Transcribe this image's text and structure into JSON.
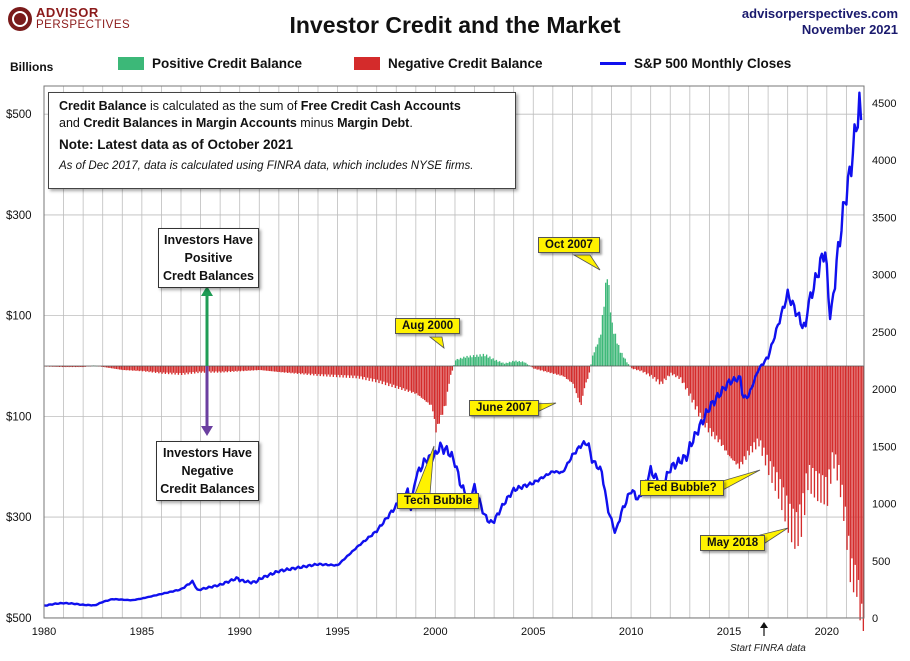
{
  "header": {
    "logo_line1": "ADVISOR",
    "logo_line2": "PERSPECTIVES",
    "title": "Investor Credit and the Market",
    "source_line1": "advisorperspectives.com",
    "source_line2": "November 2021"
  },
  "axis": {
    "left_unit": "Billions",
    "left_ticks": [
      "$500",
      "$300",
      "$100",
      "$100",
      "$300",
      "$500"
    ],
    "left_values": [
      500,
      300,
      100,
      -100,
      -300,
      -500
    ],
    "right_ticks": [
      "4500",
      "4000",
      "3500",
      "3000",
      "2500",
      "2000",
      "1500",
      "1000",
      "500",
      "0"
    ],
    "right_values": [
      4500,
      4000,
      3500,
      3000,
      2500,
      2000,
      1500,
      1000,
      500,
      0
    ],
    "x_ticks": [
      "1980",
      "1985",
      "1990",
      "1995",
      "2000",
      "2005",
      "2010",
      "2015",
      "2020"
    ],
    "x_values": [
      1980,
      1985,
      1990,
      1995,
      2000,
      2005,
      2010,
      2015,
      2020
    ]
  },
  "legend": {
    "positive": "Positive Credit Balance",
    "negative": "Negative Credit Balance",
    "sp500": "S&P 500 Monthly Closes"
  },
  "colors": {
    "positive": "#3cb878",
    "negative": "#d42b2b",
    "sp500": "#1010ee",
    "annotation": "#fff200",
    "green_arrow": "#1f9d55",
    "purple_arrow": "#6b3fa0"
  },
  "note": {
    "line1_a": "Credit Balance",
    "line1_b": " is calculated as the sum of ",
    "line1_c": "Free Credit Cash Accounts",
    "line2_a": "and ",
    "line2_b": "Credit Balances in Margin Accounts",
    "line2_c": " minus ",
    "line2_d": "Margin Debt",
    "line2_e": ".",
    "latest": "Note: Latest data as of October 2021",
    "finra": "As of Dec 2017, data is calculated using FINRA data, which includes NYSE firms."
  },
  "boxes": {
    "positive_l1": "Investors Have",
    "positive_l2": "Positive",
    "positive_l3": "Credt Balances",
    "negative_l1": "Investors Have",
    "negative_l2": "Negative",
    "negative_l3": "Credit Balances"
  },
  "annotations": {
    "oct2007": "Oct 2007",
    "aug2000": "Aug 2000",
    "june2007": "June 2007",
    "tech_bubble": "Tech Bubble",
    "fed_bubble": "Fed Bubble?",
    "may2018": "May  2018",
    "start_finra": "Start FINRA data"
  },
  "chart_data": {
    "type": "bar+line",
    "title": "Investor Credit and the Market",
    "ylabel": "Billions",
    "xlim": [
      1980,
      2021.9
    ],
    "ylim_left": [
      -500,
      500
    ],
    "ylim_right": [
      0,
      4700
    ],
    "grid": true,
    "series": [
      {
        "name": "Credit Balance (Positive Credit Balance / Negative Credit Balance)",
        "kind": "bar",
        "axis": "left",
        "points": [
          [
            1980,
            -1
          ],
          [
            1981,
            -2
          ],
          [
            1982,
            -2
          ],
          [
            1982.5,
            1
          ],
          [
            1983,
            -2
          ],
          [
            1984,
            -8
          ],
          [
            1985,
            -10
          ],
          [
            1986,
            -14
          ],
          [
            1987,
            -16
          ],
          [
            1988,
            -12
          ],
          [
            1989,
            -12
          ],
          [
            1990,
            -10
          ],
          [
            1991,
            -8
          ],
          [
            1992,
            -12
          ],
          [
            1993,
            -15
          ],
          [
            1994,
            -18
          ],
          [
            1995,
            -20
          ],
          [
            1996,
            -22
          ],
          [
            1997,
            -30
          ],
          [
            1998,
            -42
          ],
          [
            1999,
            -55
          ],
          [
            1999.8,
            -80
          ],
          [
            2000,
            -128
          ],
          [
            2000.5,
            -75
          ],
          [
            2000.7,
            -25
          ],
          [
            2001,
            12
          ],
          [
            2001.5,
            18
          ],
          [
            2002,
            20
          ],
          [
            2002.5,
            22
          ],
          [
            2003,
            12
          ],
          [
            2003.5,
            5
          ],
          [
            2004,
            10
          ],
          [
            2004.5,
            8
          ],
          [
            2005,
            -5
          ],
          [
            2005.5,
            -10
          ],
          [
            2006,
            -15
          ],
          [
            2006.5,
            -20
          ],
          [
            2007,
            -35
          ],
          [
            2007.4,
            -80
          ],
          [
            2007.6,
            -40
          ],
          [
            2007.8,
            -20
          ],
          [
            2008,
            20
          ],
          [
            2008.4,
            60
          ],
          [
            2008.75,
            185
          ],
          [
            2009,
            80
          ],
          [
            2009.4,
            30
          ],
          [
            2009.8,
            5
          ],
          [
            2010,
            -5
          ],
          [
            2010.5,
            -10
          ],
          [
            2011,
            -20
          ],
          [
            2011.5,
            -35
          ],
          [
            2012,
            -15
          ],
          [
            2012.5,
            -25
          ],
          [
            2013,
            -60
          ],
          [
            2013.5,
            -100
          ],
          [
            2014,
            -130
          ],
          [
            2014.5,
            -150
          ],
          [
            2015,
            -180
          ],
          [
            2015.5,
            -200
          ],
          [
            2016,
            -170
          ],
          [
            2016.5,
            -150
          ],
          [
            2017,
            -200
          ],
          [
            2017.5,
            -240
          ],
          [
            2018.1,
            -310
          ],
          [
            2018.4,
            -330
          ],
          [
            2018.7,
            -300
          ],
          [
            2019,
            -220
          ],
          [
            2019.5,
            -240
          ],
          [
            2020,
            -250
          ],
          [
            2020.3,
            -180
          ],
          [
            2020.6,
            -220
          ],
          [
            2020.9,
            -300
          ],
          [
            2021.2,
            -410
          ],
          [
            2021.5,
            -430
          ],
          [
            2021.75,
            -500
          ]
        ]
      },
      {
        "name": "S&P 500 Monthly Closes",
        "kind": "line",
        "axis": "right",
        "points": [
          [
            1980,
            107
          ],
          [
            1980.6,
            125
          ],
          [
            1981,
            130
          ],
          [
            1981.5,
            125
          ],
          [
            1982,
            115
          ],
          [
            1982.6,
            110
          ],
          [
            1983,
            140
          ],
          [
            1983.5,
            165
          ],
          [
            1984,
            160
          ],
          [
            1984.5,
            155
          ],
          [
            1985,
            170
          ],
          [
            1986,
            210
          ],
          [
            1987,
            250
          ],
          [
            1987.6,
            320
          ],
          [
            1987.85,
            240
          ],
          [
            1988,
            250
          ],
          [
            1989,
            290
          ],
          [
            1989.9,
            350
          ],
          [
            1990,
            330
          ],
          [
            1990.6,
            310
          ],
          [
            1990.9,
            320
          ],
          [
            1991,
            340
          ],
          [
            1992,
            410
          ],
          [
            1993,
            440
          ],
          [
            1994,
            470
          ],
          [
            1995,
            460
          ],
          [
            1996,
            620
          ],
          [
            1997,
            760
          ],
          [
            1998,
            980
          ],
          [
            1998.6,
            1110
          ],
          [
            1998.75,
            960
          ],
          [
            1999,
            1240
          ],
          [
            1999.5,
            1380
          ],
          [
            2000,
            1420
          ],
          [
            2000.2,
            1500
          ],
          [
            2000.7,
            1450
          ],
          [
            2001,
            1360
          ],
          [
            2001.3,
            1160
          ],
          [
            2001.7,
            1040
          ],
          [
            2002,
            1140
          ],
          [
            2002.5,
            900
          ],
          [
            2002.8,
            830
          ],
          [
            2003,
            850
          ],
          [
            2003.5,
            1000
          ],
          [
            2004,
            1120
          ],
          [
            2005,
            1180
          ],
          [
            2006,
            1280
          ],
          [
            2006.5,
            1270
          ],
          [
            2007,
            1420
          ],
          [
            2007.5,
            1520
          ],
          [
            2007.8,
            1530
          ],
          [
            2008,
            1380
          ],
          [
            2008.5,
            1280
          ],
          [
            2008.8,
            960
          ],
          [
            2009.2,
            740
          ],
          [
            2009.5,
            920
          ],
          [
            2010,
            1120
          ],
          [
            2010.4,
            1030
          ],
          [
            2011,
            1290
          ],
          [
            2011.6,
            1140
          ],
          [
            2012,
            1310
          ],
          [
            2012.9,
            1420
          ],
          [
            2013,
            1500
          ],
          [
            2014,
            1840
          ],
          [
            2015,
            2060
          ],
          [
            2015.6,
            2100
          ],
          [
            2015.7,
            1920
          ],
          [
            2016,
            1940
          ],
          [
            2016.5,
            2170
          ],
          [
            2017,
            2280
          ],
          [
            2018,
            2830
          ],
          [
            2018.9,
            2510
          ],
          [
            2019,
            2700
          ],
          [
            2019.9,
            3230
          ],
          [
            2020.2,
            2590
          ],
          [
            2020.5,
            3100
          ],
          [
            2020.9,
            3620
          ],
          [
            2021.2,
            3900
          ],
          [
            2021.5,
            4300
          ],
          [
            2021.7,
            4520
          ],
          [
            2021.75,
            4300
          ],
          [
            2021.8,
            4600
          ]
        ]
      }
    ]
  }
}
